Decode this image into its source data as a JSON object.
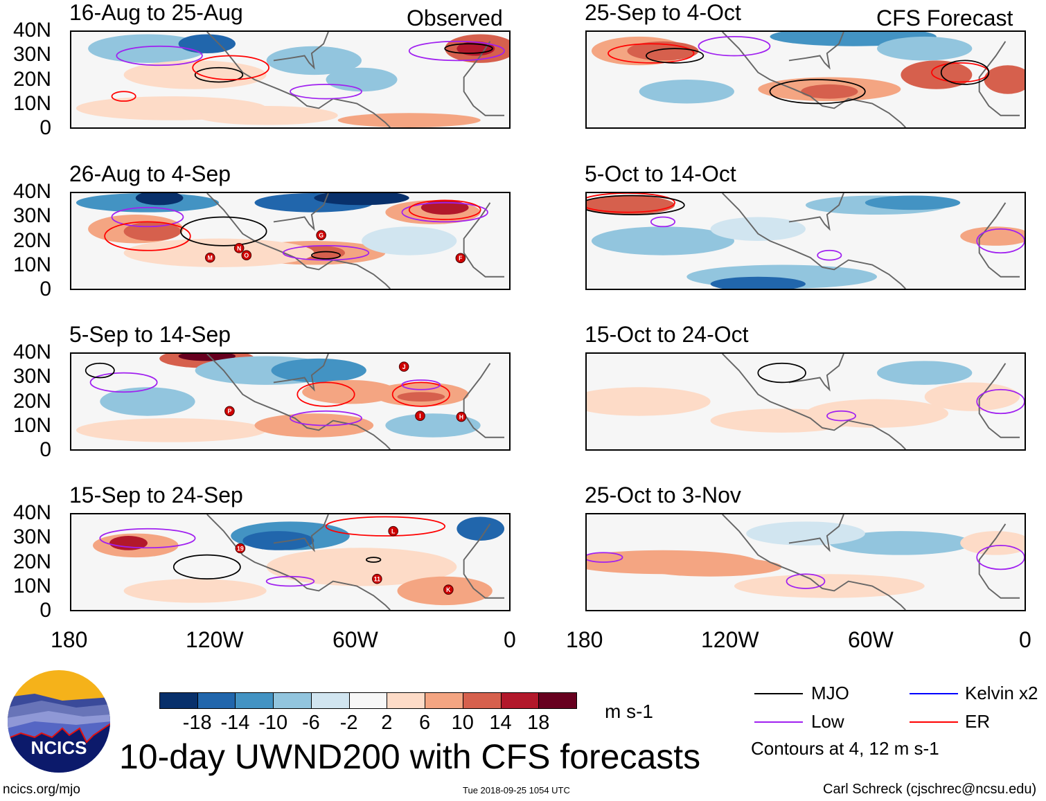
{
  "panel_labels": {
    "observed": "Observed",
    "forecast": "CFS Forecast"
  },
  "panels": [
    {
      "title": "16-Aug to 25-Aug",
      "storms": []
    },
    {
      "title": "26-Aug to 4-Sep",
      "storms": [
        {
          "label": "M",
          "lon": -123.7,
          "lat": 13
        },
        {
          "label": "N",
          "lon": -111.5,
          "lat": 17
        },
        {
          "label": "O",
          "lon": -108.4,
          "lat": 14
        },
        {
          "label": "G",
          "lon": -77,
          "lat": 22.4
        },
        {
          "label": "F",
          "lon": -18.4,
          "lat": 12.8
        }
      ]
    },
    {
      "title": "5-Sep to 14-Sep",
      "storms": [
        {
          "label": "P",
          "lon": -115.5,
          "lat": 16
        },
        {
          "label": "J",
          "lon": -42.2,
          "lat": 34.6
        },
        {
          "label": "I",
          "lon": -35.4,
          "lat": 14
        },
        {
          "label": "H",
          "lon": -18.1,
          "lat": 13.6
        }
      ]
    },
    {
      "title": "15-Sep to 24-Sep",
      "storms": [
        {
          "label": "19",
          "lon": -111,
          "lat": 25.8
        },
        {
          "label": "L",
          "lon": -46.7,
          "lat": 33
        },
        {
          "label": "11",
          "lon": -53.5,
          "lat": 13
        },
        {
          "label": "K",
          "lon": -23.5,
          "lat": 8.5
        }
      ]
    },
    {
      "title": "25-Sep to 4-Oct",
      "storms": []
    },
    {
      "title": "5-Oct to 14-Oct",
      "storms": []
    },
    {
      "title": "15-Oct to 24-Oct",
      "storms": []
    },
    {
      "title": "25-Oct to 3-Nov",
      "storms": []
    }
  ],
  "y_ticks": [
    "40N",
    "30N",
    "20N",
    "10N",
    "0"
  ],
  "x_ticks": [
    "180",
    "120W",
    "60W",
    "0"
  ],
  "colorbar": {
    "colors": [
      "#08306b",
      "#2166ac",
      "#4393c3",
      "#92c5de",
      "#d1e5f0",
      "#f7f7f7",
      "#fddbc7",
      "#f4a582",
      "#d6604d",
      "#b2182b",
      "#67001f"
    ],
    "labels": [
      "-18",
      "-14",
      "-10",
      "-6",
      "-2",
      "2",
      "6",
      "10",
      "14",
      "18"
    ],
    "units": "m s-1"
  },
  "legend": {
    "items": [
      {
        "label": "MJO",
        "color": "#000000"
      },
      {
        "label": "Kelvin x2",
        "color": "#0000ff"
      },
      {
        "label": "Low",
        "color": "#a020f0"
      },
      {
        "label": "ER",
        "color": "#ff0000"
      }
    ],
    "note": "Contours at 4, 12 m s-1"
  },
  "logo": {
    "text": "NCICS"
  },
  "footer": {
    "url": "ncics.org/mjo",
    "title": "10-day UWND200 with CFS forecasts",
    "timestamp": "Tue 2018-09-25 1054 UTC",
    "author": "Carl Schreck (cjschrec@ncsu.edu)"
  }
}
